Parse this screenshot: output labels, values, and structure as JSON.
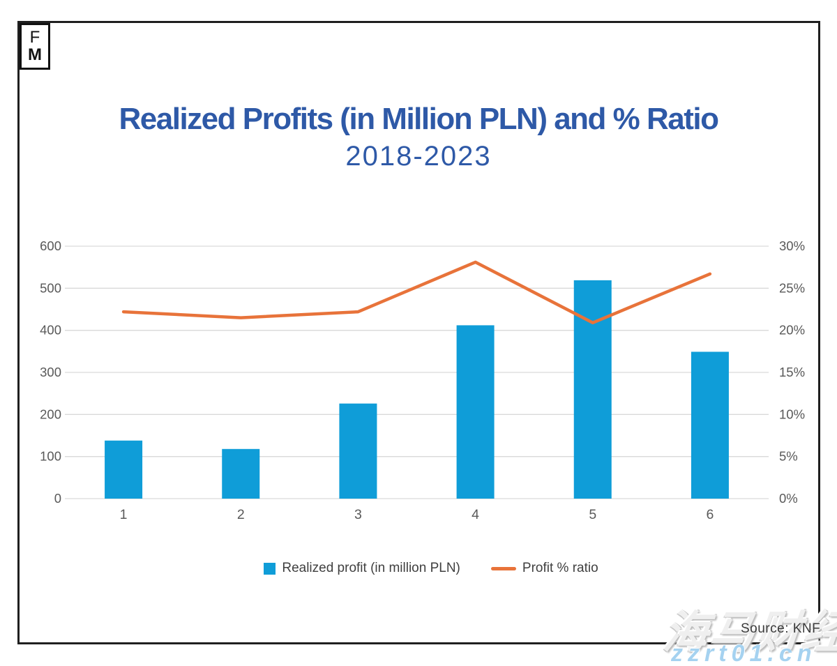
{
  "branding": {
    "logo_top": "F",
    "logo_bottom": "M"
  },
  "title": {
    "main": "Realized Profits (in Million PLN) and % Ratio",
    "subtitle": "2018-2023",
    "color": "#2e59a7"
  },
  "chart_data": {
    "type": "bar",
    "subtype": "combo-bar-line",
    "title": "Realized Profits (in Million PLN) and % Ratio",
    "subtitle": "2018-2023",
    "categories": [
      "1",
      "2",
      "3",
      "4",
      "5",
      "6"
    ],
    "series": [
      {
        "name": "Realized profit (in million PLN)",
        "type": "bar",
        "axis": "left",
        "color": "#0f9dd8",
        "values": [
          138,
          118,
          226,
          412,
          519,
          349
        ]
      },
      {
        "name": "Profit % ratio",
        "type": "line",
        "axis": "right",
        "color": "#e8733a",
        "values": [
          22.2,
          21.5,
          22.2,
          28.1,
          20.9,
          26.7
        ]
      }
    ],
    "left_axis": {
      "min": 0,
      "max": 600,
      "step": 100,
      "ticks": [
        "0",
        "100",
        "200",
        "300",
        "400",
        "500",
        "600"
      ]
    },
    "right_axis": {
      "min": 0,
      "max": 30,
      "step": 5,
      "ticks": [
        "0%",
        "5%",
        "10%",
        "15%",
        "20%",
        "25%",
        "30%"
      ]
    },
    "grid": true,
    "grid_color": "#d9d9d9",
    "axis_label_color": "#595959",
    "legend_position": "bottom",
    "xlabel": "",
    "ylabel": ""
  },
  "legend": {
    "items": [
      {
        "label": "Realized profit (in million PLN)",
        "swatch": "square",
        "color": "#0f9dd8"
      },
      {
        "label": "Profit % ratio",
        "swatch": "line",
        "color": "#e8733a"
      }
    ]
  },
  "footer": {
    "source": "Source: KNF"
  },
  "watermark": {
    "text": "海马财经",
    "url": "zzrt01.cn"
  }
}
